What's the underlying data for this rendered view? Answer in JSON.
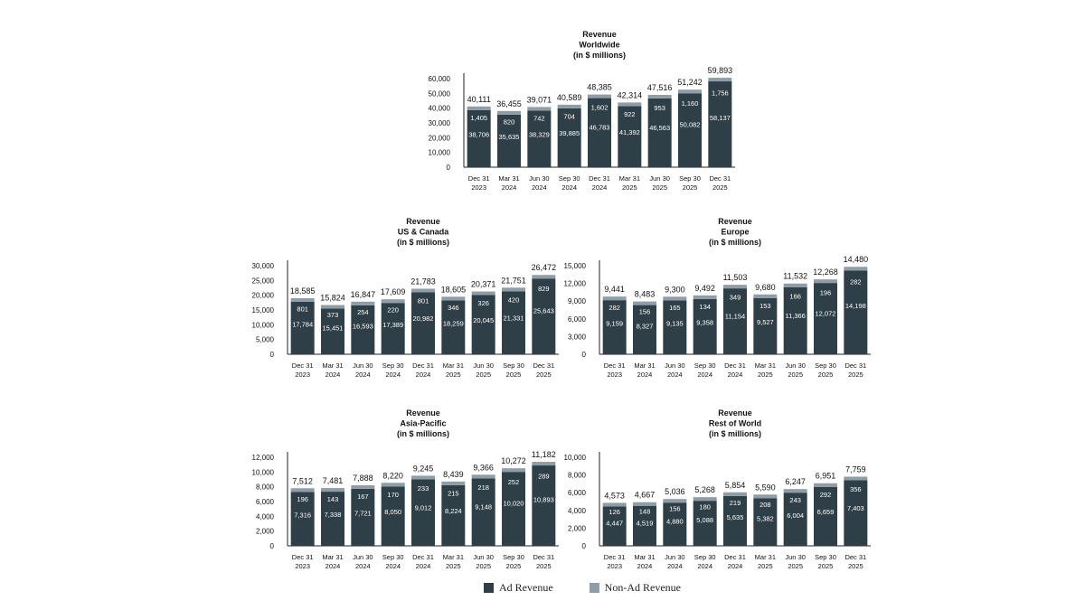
{
  "colors": {
    "ad": "#2f3f47",
    "non_ad": "#8d9ea8",
    "axis": "#222222",
    "text": "#111111"
  },
  "legend": {
    "ad_label": "Ad Revenue",
    "non_ad_label": "Non-Ad Revenue"
  },
  "chart_data": [
    {
      "id": "worldwide",
      "type": "bar",
      "stacked": true,
      "title": [
        "Revenue",
        "Worldwide",
        "(in $ millions)"
      ],
      "categories": [
        [
          "Dec 31",
          "2023"
        ],
        [
          "Mar 31",
          "2024"
        ],
        [
          "Jun 30",
          "2024"
        ],
        [
          "Sep 30",
          "2024"
        ],
        [
          "Dec 31",
          "2024"
        ],
        [
          "Mar 31",
          "2025"
        ],
        [
          "Jun 30",
          "2025"
        ],
        [
          "Sep 30",
          "2025"
        ],
        [
          "Dec 31",
          "2025"
        ]
      ],
      "series": [
        {
          "name": "Ad Revenue",
          "values": [
            38706,
            35635,
            38329,
            39885,
            46783,
            41392,
            46563,
            50082,
            58137
          ]
        },
        {
          "name": "Non-Ad Revenue",
          "values": [
            1405,
            820,
            742,
            704,
            1602,
            922,
            953,
            1160,
            1756
          ]
        }
      ],
      "totals": [
        40111,
        36455,
        39071,
        40589,
        48385,
        42314,
        47516,
        51242,
        59893
      ],
      "yticks": [
        0,
        10000,
        20000,
        30000,
        40000,
        50000,
        60000
      ],
      "ytick_labels": [
        "0",
        "10,000",
        "20,000",
        "30,000",
        "40,000",
        "50,000",
        "60,000"
      ],
      "ylim": [
        0,
        60000
      ]
    },
    {
      "id": "us-canada",
      "type": "bar",
      "stacked": true,
      "title": [
        "Revenue",
        "US & Canada",
        "(in $ millions)"
      ],
      "categories": [
        [
          "Dec 31",
          "2023"
        ],
        [
          "Mar 31",
          "2024"
        ],
        [
          "Jun 30",
          "2024"
        ],
        [
          "Sep 30",
          "2024"
        ],
        [
          "Dec 31",
          "2024"
        ],
        [
          "Mar 31",
          "2025"
        ],
        [
          "Jun 30",
          "2025"
        ],
        [
          "Sep 30",
          "2025"
        ],
        [
          "Dec 31",
          "2025"
        ]
      ],
      "series": [
        {
          "name": "Ad Revenue",
          "values": [
            17784,
            15451,
            16593,
            17389,
            20982,
            18259,
            20045,
            21331,
            25643
          ]
        },
        {
          "name": "Non-Ad Revenue",
          "values": [
            801,
            373,
            254,
            220,
            801,
            346,
            326,
            420,
            829
          ]
        }
      ],
      "totals": [
        18585,
        15824,
        16847,
        17609,
        21783,
        18605,
        20371,
        21751,
        26472
      ],
      "yticks": [
        0,
        5000,
        10000,
        15000,
        20000,
        25000,
        30000
      ],
      "ytick_labels": [
        "0",
        "5,000",
        "10,000",
        "15,000",
        "20,000",
        "25,000",
        "30,000"
      ],
      "ylim": [
        0,
        30000
      ]
    },
    {
      "id": "europe",
      "type": "bar",
      "stacked": true,
      "title": [
        "Revenue",
        "Europe",
        "(in $ millions)"
      ],
      "categories": [
        [
          "Dec 31",
          "2023"
        ],
        [
          "Mar 31",
          "2024"
        ],
        [
          "Jun 30",
          "2024"
        ],
        [
          "Sep 30",
          "2024"
        ],
        [
          "Dec 31",
          "2024"
        ],
        [
          "Mar 31",
          "2025"
        ],
        [
          "Jun 30",
          "2025"
        ],
        [
          "Sep 30",
          "2025"
        ],
        [
          "Dec 31",
          "2025"
        ]
      ],
      "series": [
        {
          "name": "Ad Revenue",
          "values": [
            9159,
            8327,
            9135,
            9358,
            11154,
            9527,
            11366,
            12072,
            14198
          ]
        },
        {
          "name": "Non-Ad Revenue",
          "values": [
            282,
            156,
            165,
            134,
            349,
            153,
            166,
            196,
            282
          ]
        }
      ],
      "totals": [
        9441,
        8483,
        9300,
        9492,
        11503,
        9680,
        11532,
        12268,
        14480
      ],
      "yticks": [
        0,
        3000,
        6000,
        9000,
        12000,
        15000
      ],
      "ytick_labels": [
        "0",
        "3,000",
        "6,000",
        "9,000",
        "12,000",
        "15,000"
      ],
      "ylim": [
        0,
        15000
      ]
    },
    {
      "id": "asia-pacific",
      "type": "bar",
      "stacked": true,
      "title": [
        "Revenue",
        "Asia-Pacific",
        "(in $ millions)"
      ],
      "categories": [
        [
          "Dec 31",
          "2023"
        ],
        [
          "Mar 31",
          "2024"
        ],
        [
          "Jun 30",
          "2024"
        ],
        [
          "Sep 30",
          "2024"
        ],
        [
          "Dec 31",
          "2024"
        ],
        [
          "Mar 31",
          "2025"
        ],
        [
          "Jun 30",
          "2025"
        ],
        [
          "Sep 30",
          "2025"
        ],
        [
          "Dec 31",
          "2025"
        ]
      ],
      "series": [
        {
          "name": "Ad Revenue",
          "values": [
            7316,
            7338,
            7721,
            8050,
            9012,
            8224,
            9148,
            10020,
            10893
          ]
        },
        {
          "name": "Non-Ad Revenue",
          "values": [
            196,
            143,
            167,
            170,
            233,
            215,
            218,
            252,
            289
          ]
        }
      ],
      "totals": [
        7512,
        7481,
        7888,
        8220,
        9245,
        8439,
        9366,
        10272,
        11182
      ],
      "yticks": [
        0,
        2000,
        4000,
        6000,
        8000,
        10000,
        12000
      ],
      "ytick_labels": [
        "0",
        "2,000",
        "4,000",
        "6,000",
        "8,000",
        "10,000",
        "12,000"
      ],
      "ylim": [
        0,
        12000
      ]
    },
    {
      "id": "rest-of-world",
      "type": "bar",
      "stacked": true,
      "title": [
        "Revenue",
        "Rest of World",
        "(in $ millions)"
      ],
      "categories": [
        [
          "Dec 31",
          "2023"
        ],
        [
          "Mar 31",
          "2024"
        ],
        [
          "Jun 30",
          "2024"
        ],
        [
          "Sep 30",
          "2024"
        ],
        [
          "Dec 31",
          "2024"
        ],
        [
          "Mar 31",
          "2025"
        ],
        [
          "Jun 30",
          "2025"
        ],
        [
          "Sep 30",
          "2025"
        ],
        [
          "Dec 31",
          "2025"
        ]
      ],
      "series": [
        {
          "name": "Ad Revenue",
          "values": [
            4447,
            4519,
            4880,
            5088,
            5635,
            5382,
            6004,
            6659,
            7403
          ]
        },
        {
          "name": "Non-Ad Revenue",
          "values": [
            126,
            148,
            156,
            180,
            219,
            208,
            243,
            292,
            356
          ]
        }
      ],
      "totals": [
        4573,
        4667,
        5036,
        5268,
        5854,
        5590,
        6247,
        6951,
        7759
      ],
      "yticks": [
        0,
        2000,
        4000,
        6000,
        8000,
        10000
      ],
      "ytick_labels": [
        "0",
        "2,000",
        "4,000",
        "6,000",
        "8,000",
        "10,000"
      ],
      "ylim": [
        0,
        10000
      ]
    }
  ]
}
